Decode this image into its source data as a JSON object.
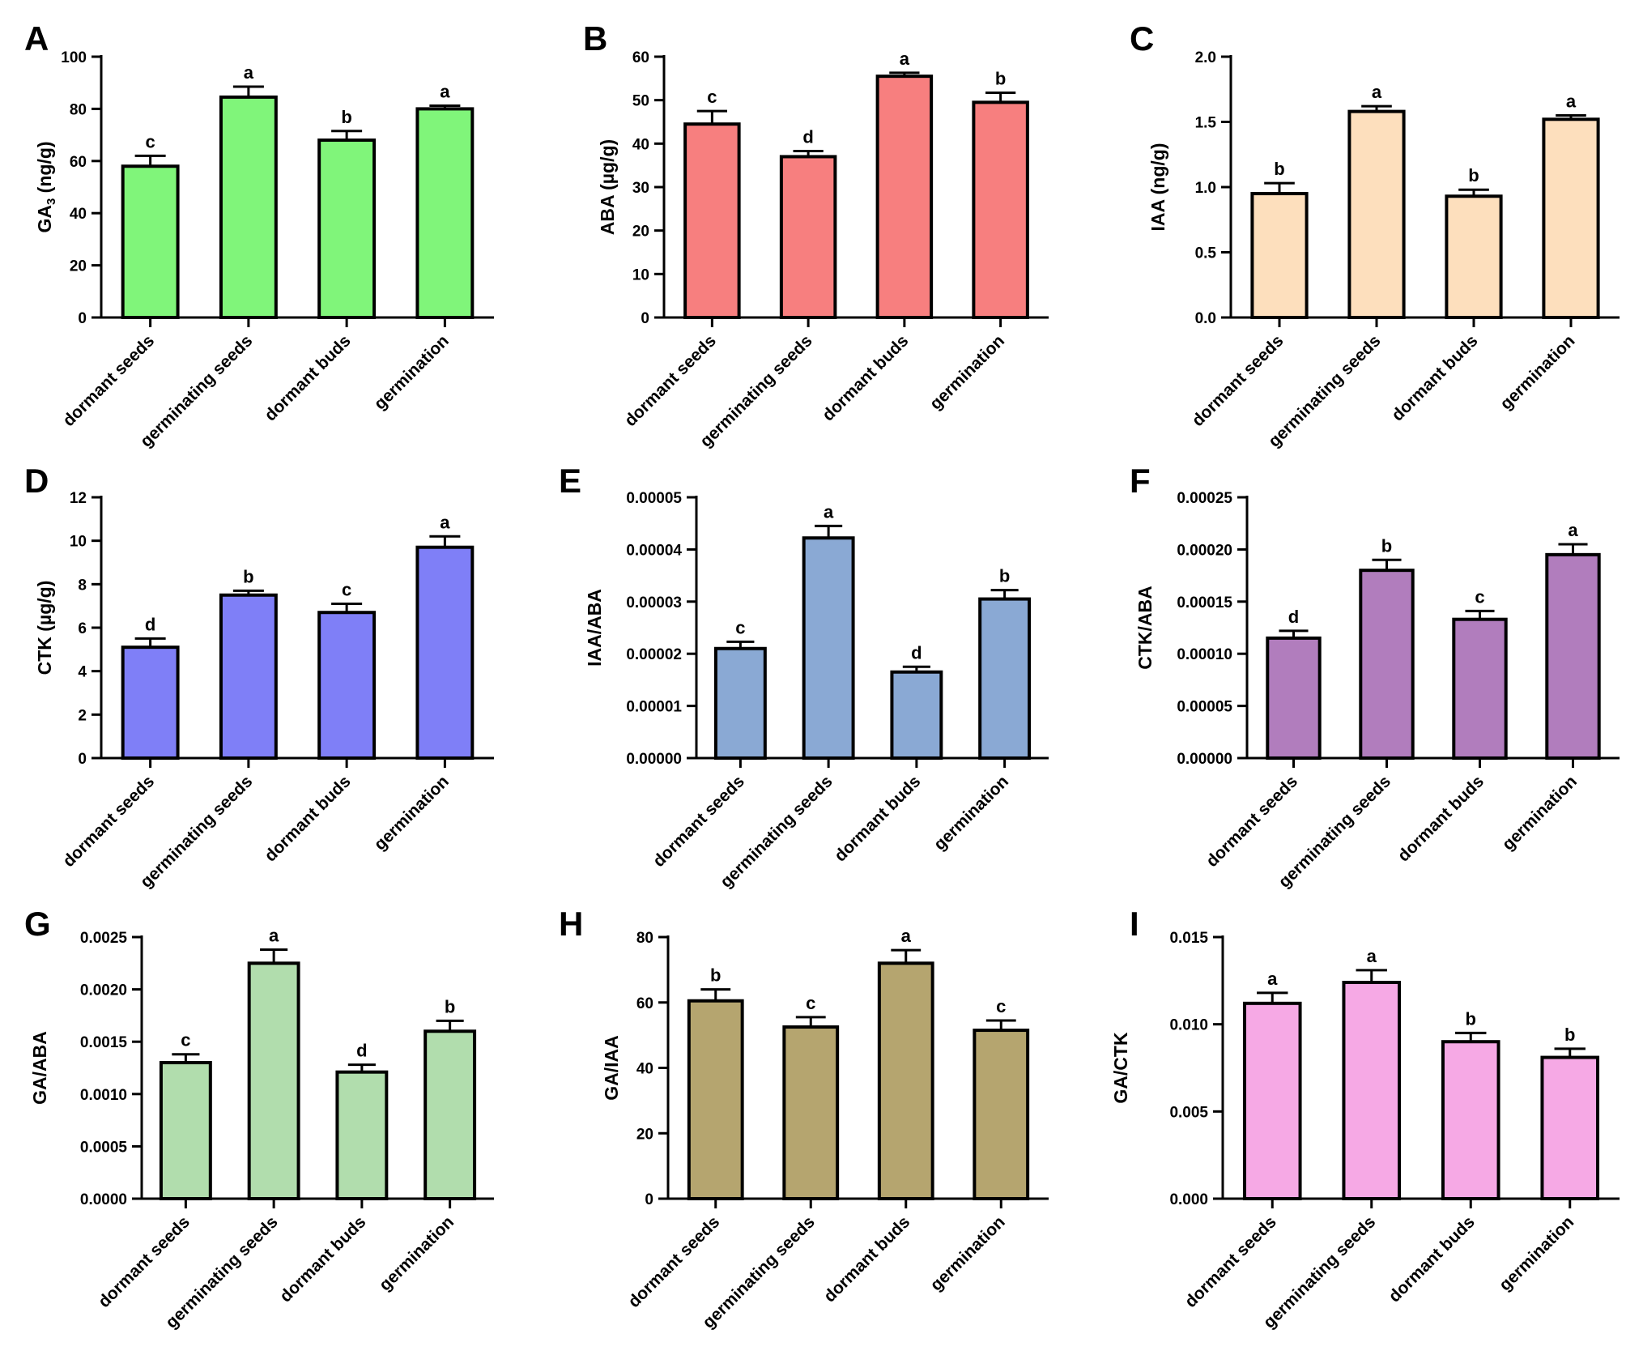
{
  "chart_data": [
    {
      "type": "bar",
      "panel": "A",
      "title": "",
      "ylabel": "GA3 (ng/g)",
      "ylabel_main": "GA",
      "ylabel_sub": "3",
      "ylabel_rest": " (ng/g)",
      "categories": [
        "dormant seeds",
        "germinating seeds",
        "dormant buds",
        "germination"
      ],
      "values": [
        58,
        84.5,
        68,
        80
      ],
      "errors": [
        4,
        4,
        3.5,
        1.2
      ],
      "significance": [
        "c",
        "a",
        "b",
        "a"
      ],
      "ylim": [
        0,
        100
      ],
      "ticks": [
        "0",
        "20",
        "40",
        "60",
        "80",
        "100"
      ],
      "color": "#80f57a"
    },
    {
      "type": "bar",
      "panel": "B",
      "title": "",
      "ylabel": "ABA (µg/g)",
      "categories": [
        "dormant seeds",
        "germinating seeds",
        "dormant buds",
        "germination"
      ],
      "values": [
        44.5,
        37,
        55.5,
        49.5
      ],
      "errors": [
        3,
        1.3,
        0.8,
        2.2
      ],
      "significance": [
        "c",
        "d",
        "a",
        "b"
      ],
      "ylim": [
        0,
        60
      ],
      "ticks": [
        "0",
        "10",
        "20",
        "30",
        "40",
        "50",
        "60"
      ],
      "color": "#f77f7f"
    },
    {
      "type": "bar",
      "panel": "C",
      "title": "",
      "ylabel": "IAA (ng/g)",
      "categories": [
        "dormant seeds",
        "germinating seeds",
        "dormant buds",
        "germination"
      ],
      "values": [
        0.95,
        1.58,
        0.93,
        1.52
      ],
      "errors": [
        0.08,
        0.04,
        0.05,
        0.03
      ],
      "significance": [
        "b",
        "a",
        "b",
        "a"
      ],
      "ylim": [
        0,
        2.0
      ],
      "ticks": [
        "0.0",
        "0.5",
        "1.0",
        "1.5",
        "2.0"
      ],
      "color": "#fddfbd"
    },
    {
      "type": "bar",
      "panel": "D",
      "title": "",
      "ylabel": "CTK (µg/g)",
      "categories": [
        "dormant seeds",
        "germinating seeds",
        "dormant buds",
        "germination"
      ],
      "values": [
        5.1,
        7.5,
        6.7,
        9.7
      ],
      "errors": [
        0.4,
        0.2,
        0.4,
        0.5
      ],
      "significance": [
        "d",
        "b",
        "c",
        "a"
      ],
      "ylim": [
        0,
        12
      ],
      "ticks": [
        "0",
        "2",
        "4",
        "6",
        "8",
        "10",
        "12"
      ],
      "color": "#7f7ff7"
    },
    {
      "type": "bar",
      "panel": "E",
      "title": "",
      "ylabel": "IAA/ABA",
      "categories": [
        "dormant seeds",
        "germinating seeds",
        "dormant buds",
        "germination"
      ],
      "values": [
        2.1e-05,
        4.22e-05,
        1.65e-05,
        3.05e-05
      ],
      "errors": [
        1.3e-06,
        2.3e-06,
        1e-06,
        1.7e-06
      ],
      "significance": [
        "c",
        "a",
        "d",
        "b"
      ],
      "ylim": [
        0,
        5e-05
      ],
      "ticks": [
        "0.00000",
        "0.00001",
        "0.00002",
        "0.00003",
        "0.00004",
        "0.00005"
      ],
      "color": "#8aa9d4"
    },
    {
      "type": "bar",
      "panel": "F",
      "title": "",
      "ylabel": "CTK/ABA",
      "categories": [
        "dormant seeds",
        "germinating seeds",
        "dormant buds",
        "germination"
      ],
      "values": [
        0.000115,
        0.00018,
        0.000133,
        0.000195
      ],
      "errors": [
        7e-06,
        1e-05,
        8e-06,
        1e-05
      ],
      "significance": [
        "d",
        "b",
        "c",
        "a"
      ],
      "ylim": [
        0,
        0.00025
      ],
      "ticks": [
        "0.00000",
        "0.00005",
        "0.00010",
        "0.00015",
        "0.00020",
        "0.00025"
      ],
      "color": "#b17dbd"
    },
    {
      "type": "bar",
      "panel": "G",
      "title": "",
      "ylabel": "GA/ABA",
      "categories": [
        "dormant seeds",
        "germinating seeds",
        "dormant buds",
        "germination"
      ],
      "values": [
        0.0013,
        0.00225,
        0.00121,
        0.0016
      ],
      "errors": [
        8e-05,
        0.00013,
        7e-05,
        0.0001
      ],
      "significance": [
        "c",
        "a",
        "d",
        "b"
      ],
      "ylim": [
        0,
        0.0025
      ],
      "ticks": [
        "0.0000",
        "0.0005",
        "0.0010",
        "0.0015",
        "0.0020",
        "0.0025"
      ],
      "color": "#b1ddad"
    },
    {
      "type": "bar",
      "panel": "H",
      "title": "",
      "ylabel": "GA/IAA",
      "categories": [
        "dormant seeds",
        "germinating seeds",
        "dormant buds",
        "germination"
      ],
      "values": [
        60.5,
        52.5,
        72,
        51.5
      ],
      "errors": [
        3.5,
        3,
        4,
        3
      ],
      "significance": [
        "b",
        "c",
        "a",
        "c"
      ],
      "ylim": [
        0,
        80
      ],
      "ticks": [
        "0",
        "20",
        "40",
        "60",
        "80"
      ],
      "color": "#b5a56f"
    },
    {
      "type": "bar",
      "panel": "I",
      "title": "",
      "ylabel": "GA/CTK",
      "categories": [
        "dormant seeds",
        "germinating seeds",
        "dormant buds",
        "germination"
      ],
      "values": [
        0.0112,
        0.0124,
        0.009,
        0.0081
      ],
      "errors": [
        0.0006,
        0.0007,
        0.0005,
        0.0005
      ],
      "significance": [
        "a",
        "a",
        "b",
        "b"
      ],
      "ylim": [
        0,
        0.015
      ],
      "ticks": [
        "0.000",
        "0.005",
        "0.010",
        "0.015"
      ],
      "color": "#f6a9e5"
    }
  ]
}
